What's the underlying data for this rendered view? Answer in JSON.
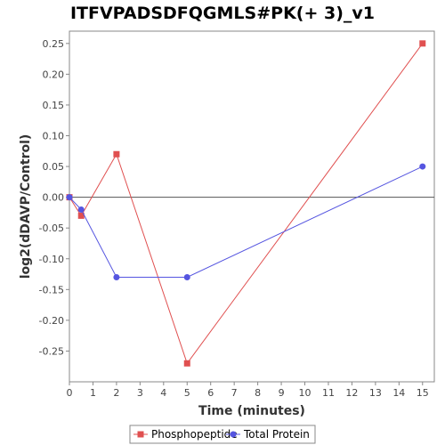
{
  "chart_data": {
    "type": "line",
    "title": "ITFVPADSDFQGMLS#PK(+ 3)_v1",
    "xlabel": "Time (minutes)",
    "ylabel": "log2(dDAVP/Control)",
    "xlim": [
      0,
      15.5
    ],
    "ylim": [
      -0.3,
      0.27
    ],
    "x_ticks": [
      0,
      1,
      2,
      3,
      4,
      5,
      6,
      7,
      8,
      9,
      10,
      11,
      12,
      13,
      14,
      15
    ],
    "y_ticks": [
      -0.25,
      -0.2,
      -0.15,
      -0.1,
      -0.05,
      0.0,
      0.05,
      0.1,
      0.15,
      0.2,
      0.25
    ],
    "y_tick_labels": [
      "-0.25",
      "-0.20",
      "-0.15",
      "-0.10",
      "-0.05",
      "0.00",
      "0.05",
      "0.10",
      "0.15",
      "0.20",
      "0.25"
    ],
    "grid": false,
    "legend_position": "bottom",
    "series": [
      {
        "name": "Phosphopeptide",
        "color": "#e05050",
        "marker": "square",
        "x": [
          0,
          0.5,
          2,
          5,
          15
        ],
        "y": [
          0.0,
          -0.03,
          0.07,
          -0.27,
          0.25
        ]
      },
      {
        "name": "Total Protein",
        "color": "#5555e0",
        "marker": "circle",
        "x": [
          0,
          0.5,
          2,
          5,
          15
        ],
        "y": [
          0.0,
          -0.02,
          -0.13,
          -0.13,
          0.05
        ]
      }
    ]
  }
}
